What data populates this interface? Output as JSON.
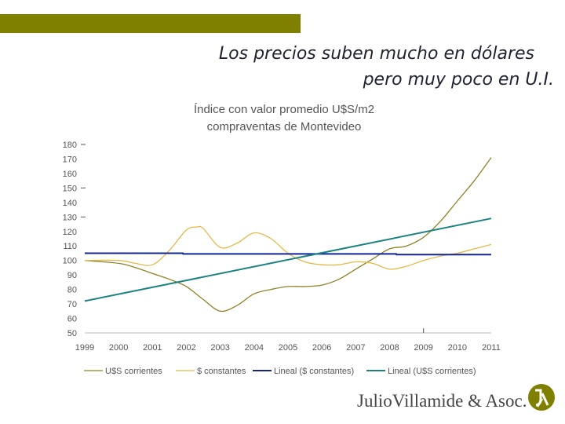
{
  "colors": {
    "topbar": "#808000",
    "headline": "#1f2230",
    "series_usd_corrientes": "#908226",
    "series_constantes": "#e6b84a",
    "series_lineal_constantes": "#12249a",
    "series_lineal_usd_corrientes": "#1b8282",
    "axis_text": "#555555",
    "brand_text": "#454545",
    "logo": "#808000"
  },
  "header": {
    "line1": "Los precios suben mucho en dólares",
    "line2": "pero muy poco en U.I."
  },
  "footer": {
    "brand": "JulioVillamide & Asoc.",
    "logo_icon": "jv-monogram-icon"
  },
  "chart_data": {
    "type": "line",
    "title": "Índice con valor promedio U$S/m2",
    "subtitle": "compraventas de Montevideo",
    "xlabel": "",
    "ylabel": "",
    "categories": [
      "1999",
      "2000",
      "2001",
      "2002",
      "2003",
      "2004",
      "2005",
      "2006",
      "2007",
      "2008",
      "2009",
      "2010",
      "2011"
    ],
    "xlim": [
      1999,
      2011
    ],
    "ylim": [
      50,
      180
    ],
    "yticks": [
      50,
      60,
      70,
      80,
      90,
      100,
      110,
      120,
      130,
      140,
      150,
      160,
      170,
      180
    ],
    "grid": false,
    "legend": "bottom",
    "series": [
      {
        "name": "U$S corrientes",
        "color": "#908226",
        "width": 1.3,
        "x": [
          1999,
          2000,
          2000.5,
          2001,
          2001.5,
          2002,
          2002.5,
          2003,
          2003.5,
          2004,
          2004.5,
          2005,
          2005.5,
          2006,
          2006.5,
          2007,
          2007.5,
          2008,
          2008.5,
          2009,
          2009.5,
          2010,
          2010.5,
          2011
        ],
        "values": [
          100,
          98,
          95,
          91,
          87,
          82,
          73,
          65,
          69,
          77,
          80,
          82,
          82,
          83,
          87,
          94,
          101,
          108,
          110,
          116,
          127,
          141,
          155,
          171
        ]
      },
      {
        "name": "$ constantes",
        "color": "#e6b84a",
        "width": 1.3,
        "x": [
          1999,
          2000,
          2000.5,
          2001,
          2001.5,
          2002,
          2002.3,
          2002.5,
          2003,
          2003.5,
          2004,
          2004.5,
          2005,
          2005.5,
          2006,
          2006.5,
          2007,
          2007.5,
          2008,
          2008.5,
          2009,
          2009.5,
          2010,
          2010.5,
          2011
        ],
        "values": [
          100,
          100,
          98,
          97,
          107,
          121,
          123,
          122,
          109,
          112,
          119,
          115,
          105,
          99,
          97,
          97,
          99,
          98,
          94,
          96,
          100,
          103,
          105,
          108,
          111
        ]
      },
      {
        "name": "Lineal ($ constantes)",
        "color": "#12249a",
        "width": 2.0,
        "x": [
          1999,
          2001.9,
          2001.9,
          2008.2,
          2008.2,
          2011
        ],
        "values": [
          105,
          105,
          104.5,
          104.5,
          104,
          104
        ]
      },
      {
        "name": "Lineal (U$S corrientes)",
        "color": "#1b8282",
        "width": 2.0,
        "x": [
          1999,
          2011
        ],
        "values": [
          72,
          129
        ]
      }
    ]
  }
}
